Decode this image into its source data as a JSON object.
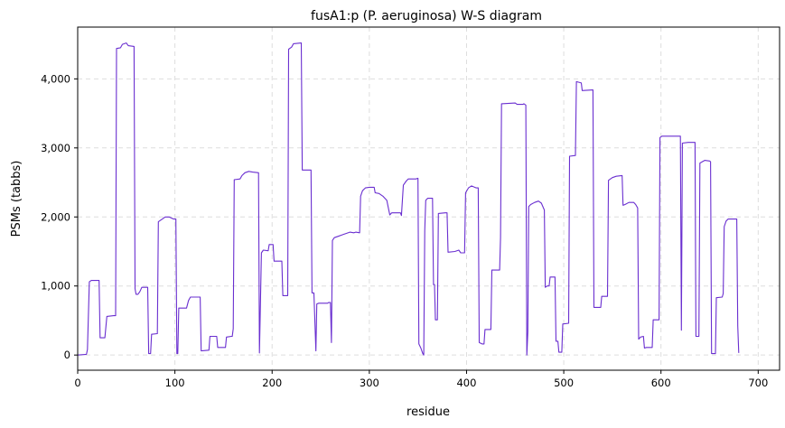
{
  "chart_data": {
    "type": "line",
    "title": "fusA1:p (P. aeruginosa) W-S diagram",
    "xlabel": "residue",
    "ylabel": "PSMs (tabbs)",
    "xlim": [
      0,
      722
    ],
    "ylim": [
      -220,
      4750
    ],
    "xticks": [
      0,
      100,
      200,
      300,
      400,
      500,
      600,
      700
    ],
    "xtick_labels": [
      "0",
      "100",
      "200",
      "300",
      "400",
      "500",
      "600",
      "700"
    ],
    "yticks": [
      0,
      1000,
      2000,
      3000,
      4000
    ],
    "ytick_labels": [
      "0",
      "1,000",
      "2,000",
      "3,000",
      "4,000"
    ],
    "grid": true,
    "line_color": "#6a2fd0",
    "series": [
      {
        "points": [
          [
            0,
            0
          ],
          [
            9,
            10
          ],
          [
            10,
            80
          ],
          [
            12,
            1060
          ],
          [
            14,
            1080
          ],
          [
            22,
            1080
          ],
          [
            23,
            250
          ],
          [
            28,
            250
          ],
          [
            30,
            560
          ],
          [
            37,
            570
          ],
          [
            39,
            570
          ],
          [
            40,
            4440
          ],
          [
            44,
            4450
          ],
          [
            46,
            4500
          ],
          [
            50,
            4520
          ],
          [
            52,
            4480
          ],
          [
            58,
            4470
          ],
          [
            59,
            960
          ],
          [
            60,
            880
          ],
          [
            62,
            880
          ],
          [
            64,
            920
          ],
          [
            66,
            980
          ],
          [
            72,
            980
          ],
          [
            73,
            20
          ],
          [
            75,
            20
          ],
          [
            76,
            300
          ],
          [
            82,
            310
          ],
          [
            83,
            1930
          ],
          [
            86,
            1960
          ],
          [
            90,
            2000
          ],
          [
            94,
            2000
          ],
          [
            97,
            1980
          ],
          [
            99,
            1970
          ],
          [
            101,
            1970
          ],
          [
            102,
            20
          ],
          [
            103,
            20
          ],
          [
            104,
            680
          ],
          [
            112,
            680
          ],
          [
            114,
            790
          ],
          [
            116,
            840
          ],
          [
            126,
            840
          ],
          [
            127,
            60
          ],
          [
            135,
            70
          ],
          [
            136,
            270
          ],
          [
            143,
            270
          ],
          [
            144,
            110
          ],
          [
            152,
            110
          ],
          [
            153,
            260
          ],
          [
            158,
            270
          ],
          [
            159,
            270
          ],
          [
            160,
            380
          ],
          [
            161,
            2540
          ],
          [
            167,
            2550
          ],
          [
            169,
            2600
          ],
          [
            172,
            2640
          ],
          [
            176,
            2660
          ],
          [
            180,
            2650
          ],
          [
            186,
            2640
          ],
          [
            187,
            30
          ],
          [
            189,
            1480
          ],
          [
            191,
            1520
          ],
          [
            196,
            1510
          ],
          [
            197,
            1600
          ],
          [
            201,
            1600
          ],
          [
            202,
            1360
          ],
          [
            210,
            1360
          ],
          [
            211,
            860
          ],
          [
            216,
            860
          ],
          [
            217,
            4430
          ],
          [
            220,
            4460
          ],
          [
            222,
            4510
          ],
          [
            230,
            4520
          ],
          [
            231,
            2680
          ],
          [
            240,
            2680
          ],
          [
            241,
            900
          ],
          [
            243,
            900
          ],
          [
            245,
            60
          ],
          [
            246,
            740
          ],
          [
            248,
            750
          ],
          [
            257,
            750
          ],
          [
            258,
            760
          ],
          [
            260,
            760
          ],
          [
            261,
            180
          ],
          [
            262,
            1660
          ],
          [
            264,
            1700
          ],
          [
            268,
            1720
          ],
          [
            272,
            1740
          ],
          [
            276,
            1760
          ],
          [
            280,
            1780
          ],
          [
            284,
            1770
          ],
          [
            286,
            1780
          ],
          [
            290,
            1770
          ],
          [
            291,
            2300
          ],
          [
            293,
            2380
          ],
          [
            296,
            2420
          ],
          [
            300,
            2430
          ],
          [
            305,
            2430
          ],
          [
            306,
            2350
          ],
          [
            310,
            2340
          ],
          [
            314,
            2300
          ],
          [
            318,
            2240
          ],
          [
            321,
            2030
          ],
          [
            323,
            2060
          ],
          [
            327,
            2060
          ],
          [
            332,
            2060
          ],
          [
            333,
            2020
          ],
          [
            335,
            2460
          ],
          [
            338,
            2520
          ],
          [
            340,
            2550
          ],
          [
            348,
            2550
          ],
          [
            350,
            2560
          ],
          [
            351,
            160
          ],
          [
            353,
            100
          ],
          [
            355,
            20
          ],
          [
            356,
            0
          ],
          [
            357,
            1800
          ],
          [
            358,
            2240
          ],
          [
            360,
            2270
          ],
          [
            365,
            2270
          ],
          [
            366,
            1020
          ],
          [
            367,
            1020
          ],
          [
            368,
            510
          ],
          [
            370,
            510
          ],
          [
            371,
            2050
          ],
          [
            378,
            2060
          ],
          [
            380,
            2060
          ],
          [
            381,
            1490
          ],
          [
            388,
            1500
          ],
          [
            392,
            1520
          ],
          [
            394,
            1480
          ],
          [
            398,
            1480
          ],
          [
            399,
            2350
          ],
          [
            402,
            2420
          ],
          [
            405,
            2450
          ],
          [
            410,
            2420
          ],
          [
            412,
            2420
          ],
          [
            413,
            180
          ],
          [
            416,
            160
          ],
          [
            418,
            160
          ],
          [
            419,
            370
          ],
          [
            425,
            370
          ],
          [
            426,
            1230
          ],
          [
            434,
            1230
          ],
          [
            435,
            1700
          ],
          [
            436,
            3640
          ],
          [
            450,
            3650
          ],
          [
            452,
            3630
          ],
          [
            458,
            3630
          ],
          [
            459,
            3640
          ],
          [
            461,
            3620
          ],
          [
            462,
            0
          ],
          [
            463,
            330
          ],
          [
            464,
            2150
          ],
          [
            466,
            2180
          ],
          [
            470,
            2210
          ],
          [
            474,
            2230
          ],
          [
            477,
            2200
          ],
          [
            480,
            2100
          ],
          [
            481,
            980
          ],
          [
            483,
            1000
          ],
          [
            485,
            1000
          ],
          [
            486,
            1130
          ],
          [
            491,
            1130
          ],
          [
            492,
            200
          ],
          [
            494,
            200
          ],
          [
            495,
            40
          ],
          [
            498,
            40
          ],
          [
            499,
            450
          ],
          [
            505,
            460
          ],
          [
            506,
            2880
          ],
          [
            512,
            2890
          ],
          [
            513,
            3960
          ],
          [
            518,
            3940
          ],
          [
            519,
            3830
          ],
          [
            530,
            3840
          ],
          [
            531,
            690
          ],
          [
            538,
            690
          ],
          [
            539,
            850
          ],
          [
            545,
            850
          ],
          [
            546,
            2530
          ],
          [
            550,
            2570
          ],
          [
            554,
            2590
          ],
          [
            560,
            2600
          ],
          [
            561,
            2170
          ],
          [
            563,
            2180
          ],
          [
            567,
            2210
          ],
          [
            572,
            2210
          ],
          [
            574,
            2180
          ],
          [
            576,
            2130
          ],
          [
            577,
            230
          ],
          [
            579,
            260
          ],
          [
            582,
            270
          ],
          [
            583,
            100
          ],
          [
            585,
            110
          ],
          [
            591,
            110
          ],
          [
            592,
            510
          ],
          [
            598,
            510
          ],
          [
            599,
            3150
          ],
          [
            601,
            3170
          ],
          [
            620,
            3170
          ],
          [
            621,
            360
          ],
          [
            622,
            3070
          ],
          [
            628,
            3080
          ],
          [
            635,
            3080
          ],
          [
            636,
            270
          ],
          [
            639,
            270
          ],
          [
            640,
            2780
          ],
          [
            645,
            2820
          ],
          [
            650,
            2810
          ],
          [
            651,
            2800
          ],
          [
            652,
            20
          ],
          [
            656,
            20
          ],
          [
            657,
            830
          ],
          [
            663,
            840
          ],
          [
            664,
            890
          ],
          [
            665,
            1860
          ],
          [
            667,
            1940
          ],
          [
            669,
            1970
          ],
          [
            677,
            1970
          ],
          [
            678,
            1970
          ],
          [
            679,
            420
          ],
          [
            680,
            30
          ]
        ]
      }
    ]
  }
}
